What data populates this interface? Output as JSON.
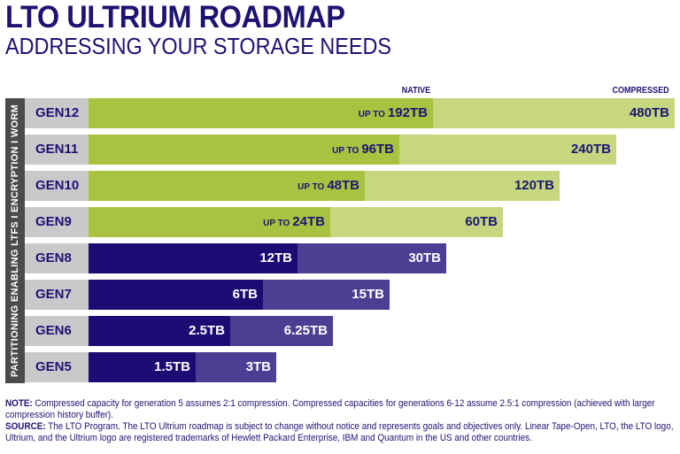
{
  "title": "LTO ULTRIUM ROADMAP",
  "subtitle": "ADDRESSING YOUR STORAGE NEEDS",
  "sidebar_text": "PARTITIONING ENABLING LTFS  I  ENCRYPTION  I  WORM",
  "colors": {
    "title": "#1e1373",
    "native_future": "#a9c23f",
    "compressed_future": "#c6d77f",
    "native_past": "#1e0a73",
    "compressed_past": "#4b3f94",
    "label_bg": "#c9c9cb",
    "sidebar": "#4b4b4d"
  },
  "chart_data": {
    "type": "bar",
    "orientation": "horizontal",
    "unit": "TB",
    "legend": [
      "NATIVE",
      "COMPRESSED"
    ],
    "categories": [
      "GEN12",
      "GEN11",
      "GEN10",
      "GEN9",
      "GEN8",
      "GEN7",
      "GEN6",
      "GEN5"
    ],
    "series": [
      {
        "name": "NATIVE",
        "values": [
          192,
          96,
          48,
          24,
          12,
          6,
          2.5,
          1.5
        ],
        "labels": [
          "192TB",
          "96TB",
          "48TB",
          "24TB",
          "12TB",
          "6TB",
          "2.5TB",
          "1.5TB"
        ],
        "prefix": [
          "UP TO",
          "UP TO",
          "UP TO",
          "UP TO",
          "",
          "",
          "",
          ""
        ]
      },
      {
        "name": "COMPRESSED",
        "values": [
          480,
          240,
          120,
          60,
          30,
          15,
          6.25,
          3
        ],
        "labels": [
          "480TB",
          "240TB",
          "120TB",
          "60TB",
          "30TB",
          "15TB",
          "6.25TB",
          "3TB"
        ]
      }
    ]
  },
  "notes": {
    "note_label": "NOTE:",
    "note_text": " Compressed capacity for generation 5 assumes 2:1 compression. Compressed capacities for generations 6-12 assume 2.5:1 compression (achieved with larger compression history buffer).",
    "source_label": "SOURCE:",
    "source_text": " The LTO Program. The LTO Ultrium roadmap is subject to change without notice and represents goals and objectives only. Linear Tape-Open, LTO, the LTO logo, Ultrium, and the Ultrium logo are registered trademarks of Hewlett Packard Enterprise, IBM and Quantum in the US and other countries."
  }
}
